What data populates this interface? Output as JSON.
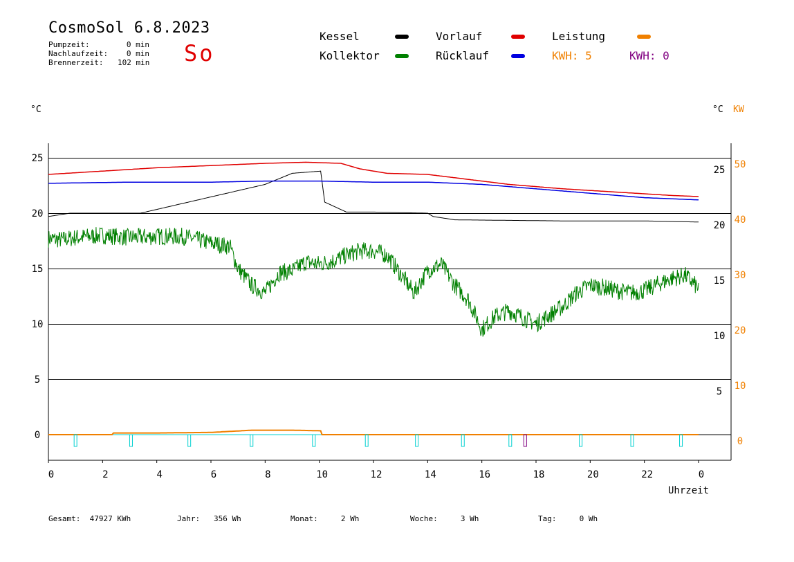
{
  "header": {
    "title": "CosmoSol 6.8.2023",
    "weekday": "So",
    "stats": [
      {
        "label": "Pumpzeit:",
        "value": "0 min"
      },
      {
        "label": "Nachlaufzeit:",
        "value": "0 min"
      },
      {
        "label": "Brennerzeit:",
        "value": "102 min"
      }
    ]
  },
  "legend": {
    "kessel": "Kessel",
    "kollektor": "Kollektor",
    "vorlauf": "Vorlauf",
    "ruecklauf": "Rücklauf",
    "leistung": "Leistung",
    "kwh1": "KWH: 5",
    "kwh2": "KWH: 0"
  },
  "colors": {
    "kessel": "#000000",
    "kollektor": "#008000",
    "vorlauf": "#e00000",
    "ruecklauf": "#0000e0",
    "leistung": "#f08000",
    "kwh2": "#800080",
    "pump": "#00d0d0"
  },
  "footer": {
    "gesamt": "Gesamt:  47927 KWh",
    "jahr": "Jahr:   356 Wh",
    "monat": "Monat:     2 Wh",
    "woche": "Woche:     3 Wh",
    "tag": "Tag:     0 Wh"
  },
  "chart_data": {
    "type": "line",
    "xlabel": "Uhrzeit",
    "ylabel_left": "°C",
    "ylabel_right": "°C",
    "ylabel_right2": "KW",
    "xlim": [
      0,
      24
    ],
    "ylim": [
      -2.5,
      26.5
    ],
    "x_ticks": [
      "0",
      "2",
      "4",
      "6",
      "8",
      "10",
      "12",
      "14",
      "16",
      "18",
      "20",
      "22",
      "0"
    ],
    "y_ticks_left": [
      "25",
      "20",
      "15",
      "10",
      "5",
      "0"
    ],
    "y_ticks_right": [
      "25",
      "20",
      "15",
      "10",
      "5"
    ],
    "y_ticks_kw": [
      "50",
      "40",
      "30",
      "20",
      "10",
      "0"
    ],
    "grid": "horizontal",
    "legend": "top",
    "series": [
      {
        "name": "Vorlauf",
        "color": "#e00000",
        "x": [
          0,
          2,
          4,
          6,
          8,
          9.5,
          10.8,
          11.5,
          12.5,
          14,
          15,
          17,
          19,
          21,
          23,
          24
        ],
        "y": [
          23.5,
          23.8,
          24.1,
          24.3,
          24.5,
          24.6,
          24.5,
          24.0,
          23.6,
          23.5,
          23.2,
          22.6,
          22.2,
          21.9,
          21.6,
          21.5
        ]
      },
      {
        "name": "Rücklauf",
        "color": "#0000e0",
        "x": [
          0,
          3,
          6,
          8,
          10,
          12,
          14,
          16,
          18,
          20,
          22,
          24
        ],
        "y": [
          22.7,
          22.8,
          22.8,
          22.9,
          22.9,
          22.8,
          22.8,
          22.6,
          22.2,
          21.8,
          21.4,
          21.2
        ]
      },
      {
        "name": "Kessel",
        "color": "#000000",
        "x": [
          0,
          0.8,
          3.4,
          8,
          9,
          10.05,
          10.2,
          11,
          12,
          14,
          14.2,
          15,
          19,
          22,
          24
        ],
        "y": [
          19.7,
          20.0,
          20.0,
          22.6,
          23.6,
          23.8,
          21.0,
          20.1,
          20.1,
          20.0,
          19.7,
          19.4,
          19.3,
          19.3,
          19.2
        ]
      },
      {
        "name": "Kollektor",
        "color": "#008000",
        "x": [
          0,
          0.5,
          1,
          2,
          3,
          4,
          5,
          6,
          6.7,
          7,
          7.5,
          8,
          8.5,
          9,
          9.5,
          10,
          10.5,
          11,
          11.5,
          12,
          12.5,
          13,
          13.5,
          14,
          14.5,
          15,
          15.5,
          16,
          16.5,
          17,
          17.5,
          18,
          18.5,
          19,
          19.5,
          20,
          20.5,
          21,
          21.5,
          22,
          22.5,
          23,
          23.5,
          24
        ],
        "y": [
          17.7,
          17.6,
          17.8,
          18.0,
          17.8,
          17.9,
          17.9,
          17.3,
          17.0,
          15.0,
          13.5,
          12.8,
          14.6,
          14.8,
          15.6,
          15.4,
          15.7,
          16.2,
          16.6,
          16.6,
          16.2,
          14.5,
          12.8,
          14.8,
          15.4,
          13.5,
          12.2,
          9.5,
          10.7,
          11.2,
          10.6,
          10.0,
          10.8,
          11.6,
          12.8,
          13.5,
          13.3,
          13.0,
          12.8,
          13.0,
          13.6,
          14.1,
          14.4,
          13.2
        ]
      },
      {
        "name": "Leistung",
        "color": "#f08000",
        "x": [
          0,
          2.35,
          2.4,
          4,
          6,
          7.5,
          9,
          10.05,
          10.1,
          24
        ],
        "y": [
          0,
          0,
          0.15,
          0.15,
          0.2,
          0.4,
          0.4,
          0.35,
          0,
          0
        ]
      }
    ]
  }
}
